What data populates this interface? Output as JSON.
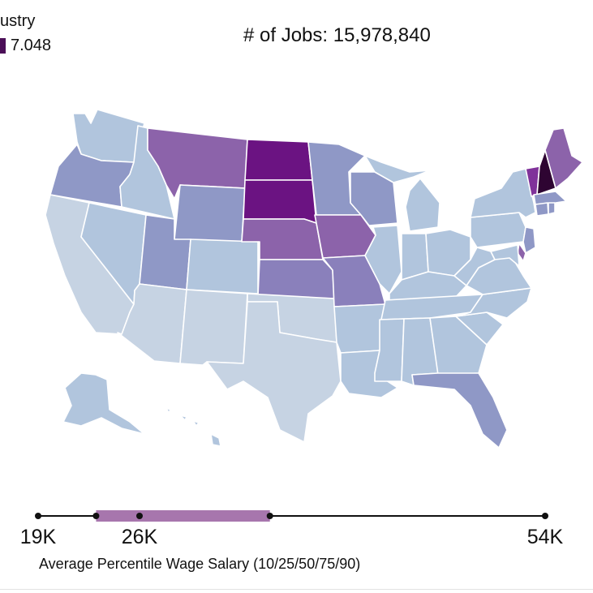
{
  "legend": {
    "title": "ustry",
    "value": "7.048",
    "swatch_color": "#4b0f57"
  },
  "header": {
    "jobs_text": "# of Jobs: 15,978,840"
  },
  "map": {
    "palette": {
      "very_light": "#c6d3e3",
      "light": "#b1c5dd",
      "mid_blue": "#a4b7d6",
      "slate": "#8f98c6",
      "lavender": "#8a80bb",
      "purple": "#8c63aa",
      "deep_purple": "#80329a",
      "magenta_dark": "#6b1382",
      "darkest": "#2e0432"
    },
    "states": [
      {
        "name": "Washington",
        "tone": "light"
      },
      {
        "name": "Oregon",
        "tone": "slate"
      },
      {
        "name": "California",
        "tone": "very_light"
      },
      {
        "name": "Idaho",
        "tone": "light"
      },
      {
        "name": "Nevada",
        "tone": "light"
      },
      {
        "name": "Montana",
        "tone": "purple"
      },
      {
        "name": "Wyoming",
        "tone": "slate"
      },
      {
        "name": "Utah",
        "tone": "slate"
      },
      {
        "name": "Arizona",
        "tone": "very_light"
      },
      {
        "name": "Colorado",
        "tone": "light"
      },
      {
        "name": "New Mexico",
        "tone": "very_light"
      },
      {
        "name": "North Dakota",
        "tone": "magenta_dark"
      },
      {
        "name": "South Dakota",
        "tone": "magenta_dark"
      },
      {
        "name": "Nebraska",
        "tone": "purple"
      },
      {
        "name": "Kansas",
        "tone": "lavender"
      },
      {
        "name": "Oklahoma",
        "tone": "very_light"
      },
      {
        "name": "Texas",
        "tone": "very_light"
      },
      {
        "name": "Minnesota",
        "tone": "slate"
      },
      {
        "name": "Iowa",
        "tone": "purple"
      },
      {
        "name": "Missouri",
        "tone": "lavender"
      },
      {
        "name": "Arkansas",
        "tone": "light"
      },
      {
        "name": "Louisiana",
        "tone": "light"
      },
      {
        "name": "Wisconsin",
        "tone": "slate"
      },
      {
        "name": "Illinois",
        "tone": "light"
      },
      {
        "name": "Michigan",
        "tone": "light"
      },
      {
        "name": "Indiana",
        "tone": "light"
      },
      {
        "name": "Ohio",
        "tone": "light"
      },
      {
        "name": "Kentucky",
        "tone": "light"
      },
      {
        "name": "Tennessee",
        "tone": "light"
      },
      {
        "name": "Mississippi",
        "tone": "light"
      },
      {
        "name": "Alabama",
        "tone": "light"
      },
      {
        "name": "Georgia",
        "tone": "light"
      },
      {
        "name": "Florida",
        "tone": "slate"
      },
      {
        "name": "South Carolina",
        "tone": "light"
      },
      {
        "name": "North Carolina",
        "tone": "light"
      },
      {
        "name": "Virginia",
        "tone": "light"
      },
      {
        "name": "West Virginia",
        "tone": "light"
      },
      {
        "name": "Pennsylvania",
        "tone": "light"
      },
      {
        "name": "New York",
        "tone": "light"
      },
      {
        "name": "New Jersey",
        "tone": "slate"
      },
      {
        "name": "Delaware",
        "tone": "purple"
      },
      {
        "name": "Maryland",
        "tone": "light"
      },
      {
        "name": "Vermont",
        "tone": "deep_purple"
      },
      {
        "name": "New Hampshire",
        "tone": "darkest"
      },
      {
        "name": "Maine",
        "tone": "purple"
      },
      {
        "name": "Massachusetts",
        "tone": "slate"
      },
      {
        "name": "Connecticut",
        "tone": "slate"
      },
      {
        "name": "Rhode Island",
        "tone": "slate"
      },
      {
        "name": "Alaska",
        "tone": "light"
      },
      {
        "name": "Hawaii",
        "tone": "light"
      }
    ]
  },
  "wage_scale": {
    "caption": "Average Percentile Wage Salary (10/25/50/75/90)",
    "axis_min": 19000,
    "axis_max": 54000,
    "tick_labels": [
      "19K",
      "26K",
      "54K"
    ],
    "tick_values": [
      19000,
      26000,
      54000
    ],
    "percentiles": [
      19000,
      23000,
      26000,
      35000,
      54000
    ],
    "range_fill_color": "#a776ad"
  }
}
